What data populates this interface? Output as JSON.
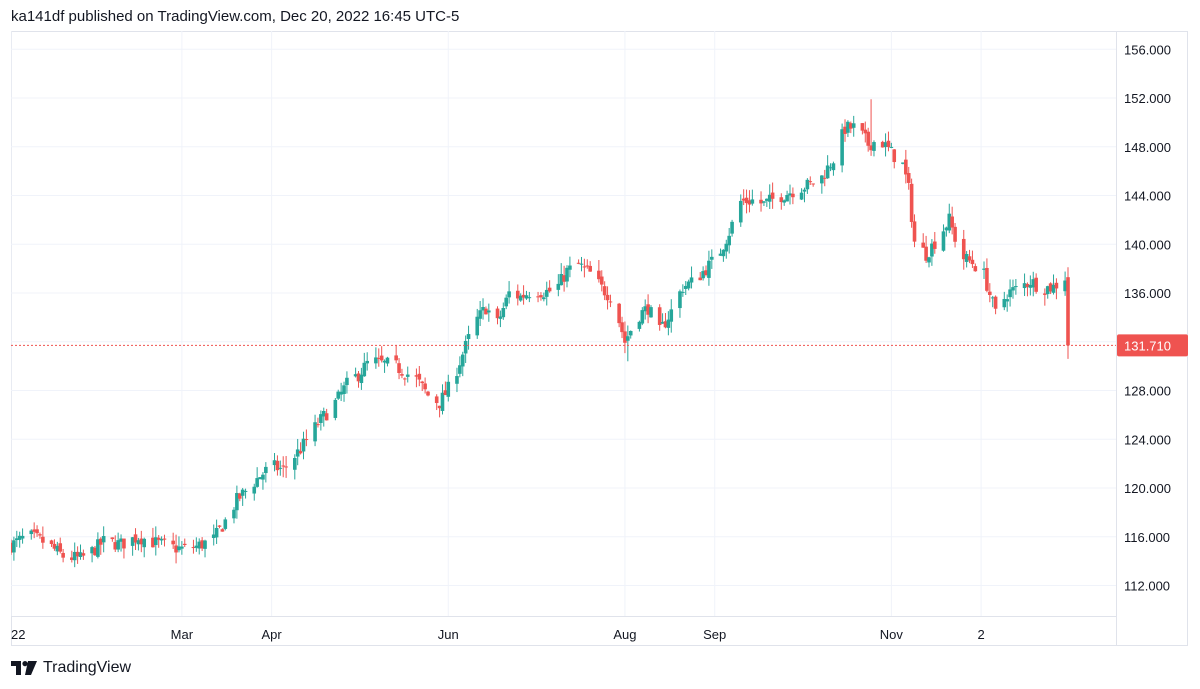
{
  "header": {
    "publisher_line": "ka141df published on TradingView.com, Dec 20, 2022 16:45 UTC-5"
  },
  "footer": {
    "brand": "TradingView",
    "brand_icon": "tradingview-logo-icon"
  },
  "colors": {
    "up": "#26a69a",
    "down": "#ef5350",
    "grid": "#f0f3fa",
    "axis_text": "#131722",
    "last_price_line": "#ef5350"
  },
  "chart_data": {
    "type": "candlestick",
    "symbol": "",
    "title": "",
    "y_axis": {
      "position": "right",
      "range": [
        109.5,
        157.5
      ],
      "ticks": [
        "156.000",
        "152.000",
        "148.000",
        "144.000",
        "140.000",
        "136.000",
        "132.000",
        "128.000",
        "124.000",
        "120.000",
        "116.000",
        "112.000"
      ],
      "tick_values": [
        156,
        152,
        148,
        144,
        140,
        136,
        132,
        128,
        124,
        120,
        116,
        112
      ]
    },
    "x_axis": {
      "labels": [
        {
          "label": "22",
          "day": 0
        },
        {
          "label": "Mar",
          "day": 59
        },
        {
          "label": "Apr",
          "day": 90
        },
        {
          "label": "Jun",
          "day": 151
        },
        {
          "label": "Aug",
          "day": 212
        },
        {
          "label": "Sep",
          "day": 243
        },
        {
          "label": "Nov",
          "day": 304
        },
        {
          "label": "2",
          "day": 335
        }
      ],
      "day_range": [
        0,
        365
      ]
    },
    "last_price": {
      "value": 131.71,
      "label": "131.710"
    },
    "close_path": [
      [
        0,
        115.3
      ],
      [
        6,
        116.1
      ],
      [
        12,
        115.5
      ],
      [
        18,
        114.4
      ],
      [
        24,
        114.2
      ],
      [
        28,
        114.8
      ],
      [
        32,
        115.6
      ],
      [
        38,
        115.4
      ],
      [
        44,
        116.0
      ],
      [
        50,
        115.5
      ],
      [
        56,
        115.1
      ],
      [
        60,
        115.0
      ],
      [
        64,
        115.2
      ],
      [
        70,
        115.8
      ],
      [
        74,
        117.3
      ],
      [
        78,
        119.0
      ],
      [
        82,
        120.0
      ],
      [
        86,
        121.0
      ],
      [
        90,
        121.8
      ],
      [
        94,
        121.5
      ],
      [
        100,
        123.2
      ],
      [
        106,
        125.3
      ],
      [
        112,
        127.0
      ],
      [
        116,
        128.5
      ],
      [
        120,
        129.3
      ],
      [
        124,
        130.5
      ],
      [
        128,
        130.2
      ],
      [
        132,
        130.1
      ],
      [
        136,
        129.5
      ],
      [
        140,
        128.9
      ],
      [
        144,
        127.6
      ],
      [
        148,
        127.0
      ],
      [
        152,
        128.5
      ],
      [
        156,
        131.0
      ],
      [
        160,
        133.5
      ],
      [
        164,
        134.8
      ],
      [
        168,
        133.5
      ],
      [
        172,
        136.0
      ],
      [
        176,
        135.7
      ],
      [
        180,
        136.2
      ],
      [
        184,
        136.1
      ],
      [
        188,
        136.2
      ],
      [
        192,
        137.8
      ],
      [
        196,
        138.3
      ],
      [
        200,
        137.6
      ],
      [
        204,
        136.4
      ],
      [
        208,
        135.5
      ],
      [
        212,
        132.0
      ],
      [
        216,
        134.0
      ],
      [
        220,
        134.8
      ],
      [
        224,
        132.8
      ],
      [
        228,
        134.5
      ],
      [
        232,
        136.5
      ],
      [
        236,
        137.0
      ],
      [
        240,
        138.0
      ],
      [
        244,
        139.0
      ],
      [
        248,
        141.0
      ],
      [
        252,
        143.5
      ],
      [
        256,
        143.6
      ],
      [
        260,
        143.3
      ],
      [
        264,
        143.8
      ],
      [
        268,
        144.2
      ],
      [
        272,
        144.6
      ],
      [
        276,
        144.9
      ],
      [
        280,
        145.5
      ],
      [
        284,
        147.0
      ],
      [
        288,
        149.5
      ],
      [
        292,
        149.6
      ],
      [
        296,
        148.2
      ],
      [
        300,
        148.6
      ],
      [
        304,
        147.5
      ],
      [
        308,
        146.5
      ],
      [
        310,
        144.5
      ],
      [
        312,
        140.2
      ],
      [
        316,
        139.2
      ],
      [
        320,
        140.5
      ],
      [
        324,
        142.0
      ],
      [
        328,
        139.0
      ],
      [
        332,
        138.5
      ],
      [
        336,
        137.5
      ],
      [
        340,
        134.3
      ],
      [
        344,
        136.0
      ],
      [
        348,
        136.4
      ],
      [
        352,
        137.0
      ],
      [
        356,
        136.4
      ],
      [
        360,
        136.5
      ],
      [
        364,
        137.3
      ],
      [
        365,
        131.7
      ]
    ],
    "notable_wicks": [
      {
        "day": 297,
        "high": 151.9,
        "note": "peak"
      },
      {
        "day": 213,
        "low": 130.4
      },
      {
        "day": 365,
        "low": 130.6
      }
    ],
    "grid": true
  }
}
